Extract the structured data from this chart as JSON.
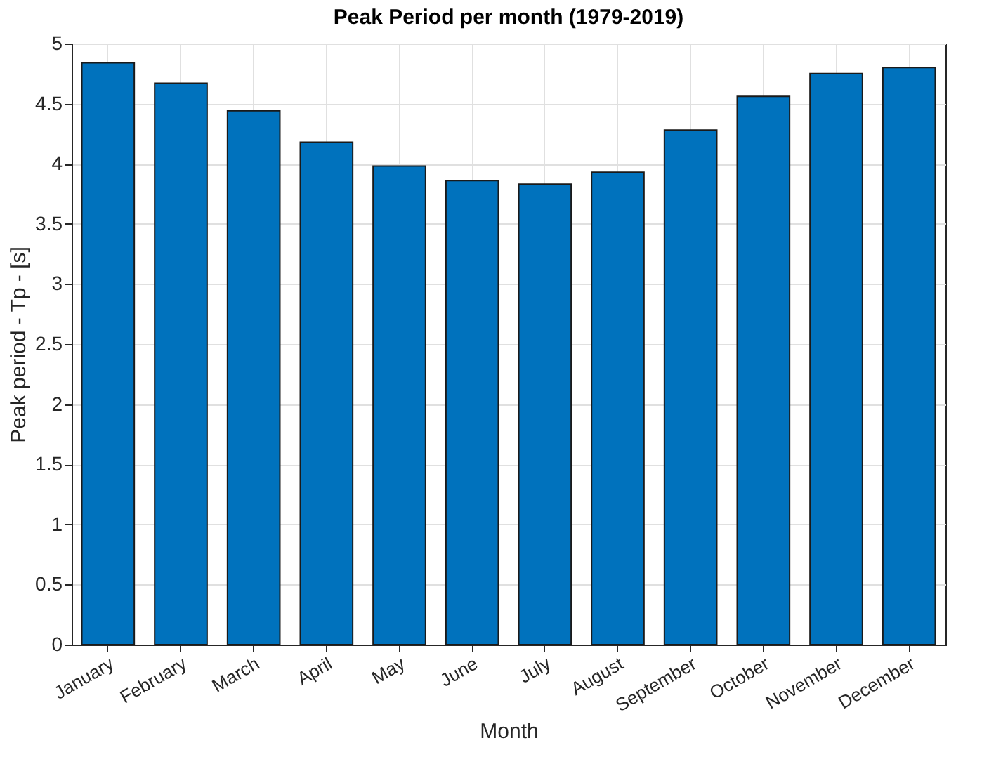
{
  "chart_data": {
    "type": "bar",
    "title": "Peak Period per month (1979-2019)",
    "xlabel": "Month",
    "ylabel": "Peak period - Tp - [s]",
    "categories": [
      "January",
      "February",
      "March",
      "April",
      "May",
      "June",
      "July",
      "August",
      "September",
      "October",
      "November",
      "December"
    ],
    "values": [
      4.84,
      4.67,
      4.44,
      4.18,
      3.98,
      3.86,
      3.83,
      3.93,
      4.28,
      4.56,
      4.75,
      4.8
    ],
    "color": "#0072bd",
    "ylim": [
      0,
      5
    ],
    "yticks": [
      0,
      0.5,
      1,
      1.5,
      2,
      2.5,
      3,
      3.5,
      4,
      4.5,
      5
    ],
    "grid": true
  }
}
